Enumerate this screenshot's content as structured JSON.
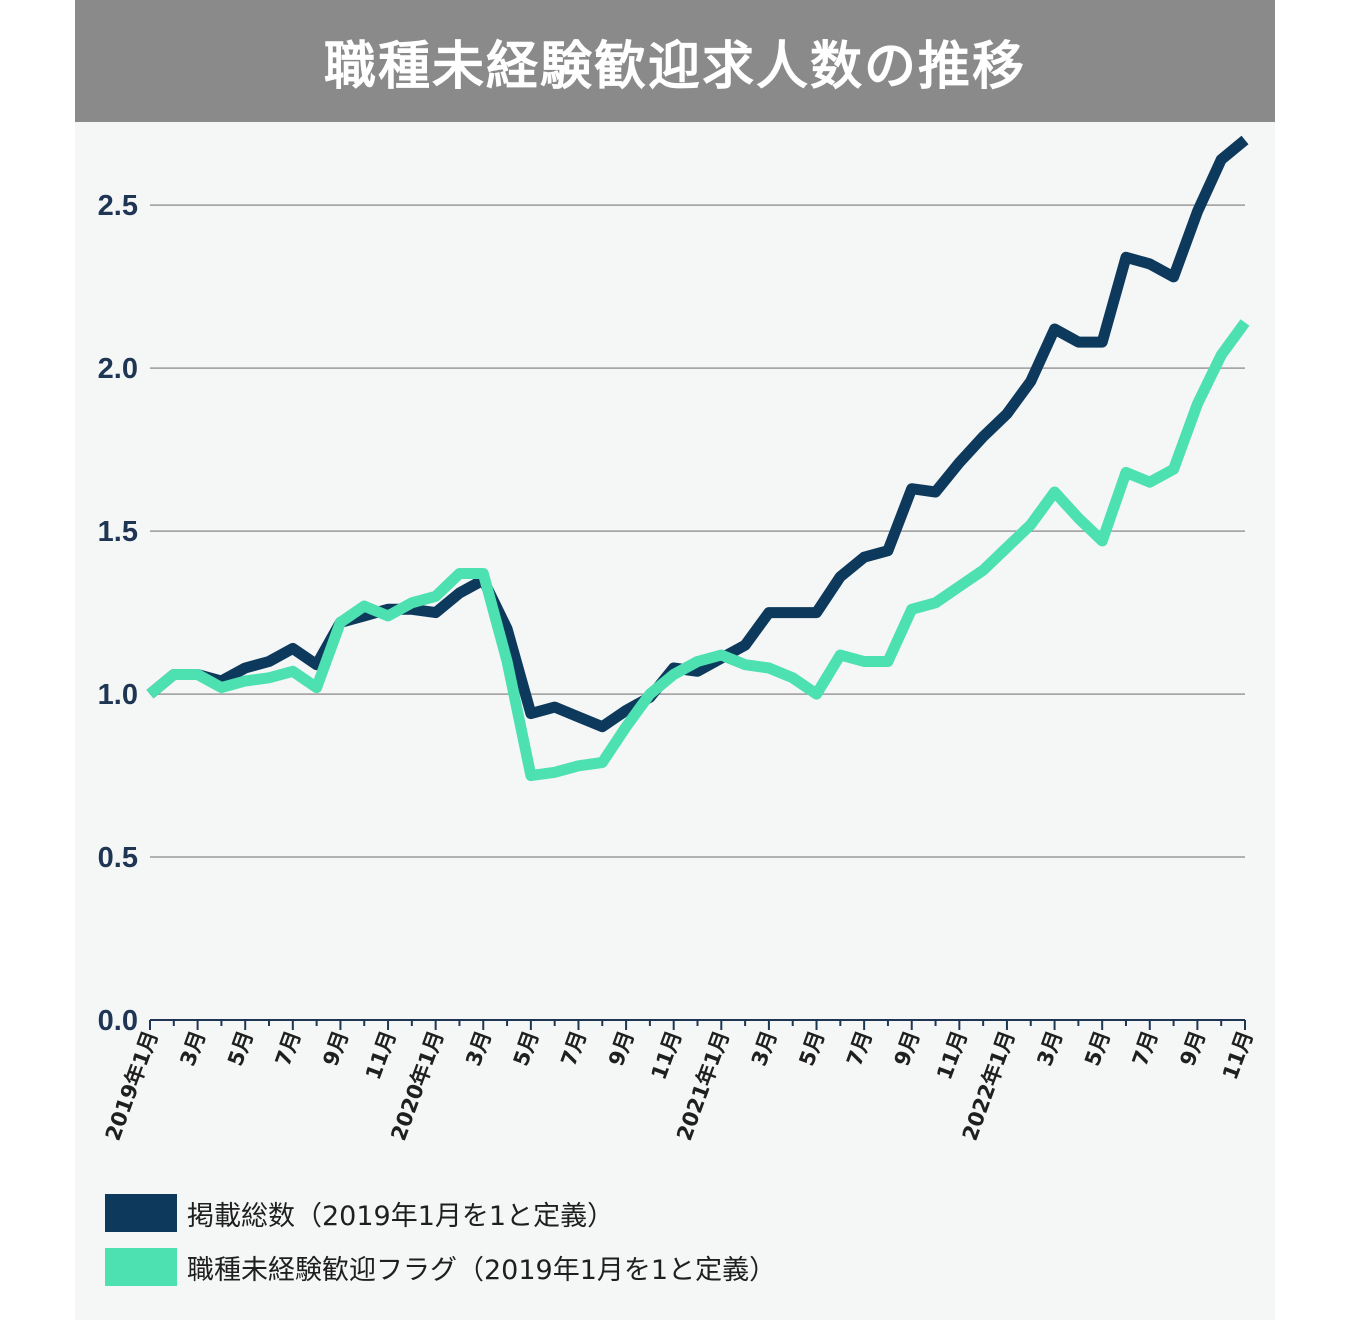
{
  "chart_data": {
    "type": "line",
    "title": "職種未経験歓迎求人数の推移",
    "xlabel": "",
    "ylabel": "",
    "ylim": [
      0,
      2.7
    ],
    "yticks": [
      "0.0",
      "0.5",
      "1.0",
      "1.5",
      "2.0",
      "2.5"
    ],
    "grid": true,
    "x_tick_labels": [
      "2019年1月",
      "",
      "3月",
      "",
      "5月",
      "",
      "7月",
      "",
      "9月",
      "",
      "11月",
      "",
      "2020年1月",
      "",
      "3月",
      "",
      "5月",
      "",
      "7月",
      "",
      "9月",
      "",
      "11月",
      "",
      "2021年1月",
      "",
      "3月",
      "",
      "5月",
      "",
      "7月",
      "",
      "9月",
      "",
      "11月",
      "",
      "2022年1月",
      "",
      "3月",
      "",
      "5月",
      "",
      "7月",
      "",
      "9月",
      "",
      "11月"
    ],
    "series": [
      {
        "name": "掲載総数（2019年1月を1と定義）",
        "color": "#0d3a5c",
        "values": [
          1.0,
          1.06,
          1.06,
          1.04,
          1.08,
          1.1,
          1.14,
          1.09,
          1.22,
          1.24,
          1.26,
          1.26,
          1.25,
          1.31,
          1.35,
          1.2,
          0.94,
          0.96,
          0.93,
          0.9,
          0.95,
          0.99,
          1.08,
          1.07,
          1.11,
          1.15,
          1.25,
          1.25,
          1.25,
          1.36,
          1.42,
          1.44,
          1.63,
          1.62,
          1.71,
          1.79,
          1.86,
          1.96,
          2.12,
          2.08,
          2.08,
          2.34,
          2.32,
          2.28,
          2.48,
          2.64,
          2.7
        ]
      },
      {
        "name": "職種未経験歓迎フラグ（2019年1月を1と定義）",
        "color": "#4de0b0",
        "values": [
          1.0,
          1.06,
          1.06,
          1.02,
          1.04,
          1.05,
          1.07,
          1.02,
          1.22,
          1.27,
          1.24,
          1.28,
          1.3,
          1.37,
          1.37,
          1.1,
          0.75,
          0.76,
          0.78,
          0.79,
          0.9,
          1.0,
          1.06,
          1.1,
          1.12,
          1.09,
          1.08,
          1.05,
          1.0,
          1.12,
          1.1,
          1.1,
          1.26,
          1.28,
          1.33,
          1.38,
          1.45,
          1.52,
          1.62,
          1.54,
          1.47,
          1.68,
          1.65,
          1.69,
          1.89,
          2.04,
          2.14
        ]
      }
    ]
  }
}
